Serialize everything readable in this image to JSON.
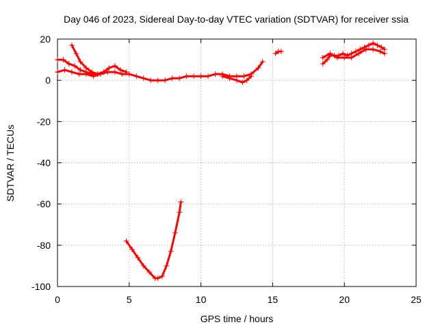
{
  "chart_data": {
    "type": "scatter",
    "title": "Day 046 of 2023, Sidereal Day-to-day VTEC variation (SDTVAR) for receiver ssia",
    "xlabel": "GPS time / hours",
    "ylabel": "SDTVAR / TECUs",
    "xlim": [
      0,
      25
    ],
    "ylim": [
      -100,
      20
    ],
    "xticks": [
      "0",
      "5",
      "10",
      "15",
      "20",
      "25"
    ],
    "yticks": [
      "-100",
      "-80",
      "-60",
      "-40",
      "-20",
      "0",
      "20"
    ],
    "grid": true,
    "color": "#ff0000",
    "series": [
      {
        "points": [
          [
            0.0,
            4
          ],
          [
            0.5,
            5
          ],
          [
            1.0,
            4
          ],
          [
            1.5,
            3
          ],
          [
            2.0,
            3
          ],
          [
            2.5,
            2
          ],
          [
            3.0,
            3
          ],
          [
            3.5,
            4
          ],
          [
            4.0,
            4
          ],
          [
            4.5,
            3
          ],
          [
            5.0,
            3
          ],
          [
            5.5,
            2
          ],
          [
            6.0,
            1
          ],
          [
            6.5,
            0
          ],
          [
            7.0,
            0
          ],
          [
            7.5,
            0
          ],
          [
            8.0,
            1
          ],
          [
            8.5,
            1
          ],
          [
            9.0,
            2
          ],
          [
            9.5,
            2
          ],
          [
            10.0,
            2
          ],
          [
            10.5,
            2
          ],
          [
            11.0,
            3
          ],
          [
            11.5,
            3
          ],
          [
            12.0,
            2
          ],
          [
            12.5,
            2
          ],
          [
            13.0,
            2
          ],
          [
            13.5,
            3
          ],
          [
            14.0,
            6
          ],
          [
            14.3,
            9
          ]
        ]
      },
      {
        "points": [
          [
            0.0,
            10
          ],
          [
            0.4,
            10
          ],
          [
            0.8,
            8
          ],
          [
            1.2,
            7
          ],
          [
            1.6,
            5
          ],
          [
            2.0,
            4
          ],
          [
            2.4,
            3
          ],
          [
            2.8,
            3
          ],
          [
            3.2,
            4
          ],
          [
            3.6,
            6
          ],
          [
            4.0,
            7
          ],
          [
            4.4,
            5
          ],
          [
            4.8,
            4
          ]
        ]
      },
      {
        "points": [
          [
            1.0,
            17
          ],
          [
            1.3,
            13
          ],
          [
            1.6,
            9
          ],
          [
            2.0,
            6
          ],
          [
            2.4,
            4
          ],
          [
            2.8,
            3
          ]
        ]
      },
      {
        "points": [
          [
            11.5,
            2
          ],
          [
            12.0,
            1
          ],
          [
            12.5,
            0
          ],
          [
            12.9,
            -1
          ],
          [
            13.2,
            0
          ],
          [
            13.5,
            2
          ]
        ]
      },
      {
        "points": [
          [
            15.2,
            13
          ],
          [
            15.4,
            14
          ],
          [
            15.6,
            14
          ]
        ]
      },
      {
        "points": [
          [
            18.5,
            8
          ],
          [
            18.8,
            10
          ],
          [
            19.0,
            12
          ],
          [
            19.3,
            12
          ],
          [
            19.6,
            12
          ],
          [
            19.9,
            13
          ],
          [
            20.2,
            12
          ],
          [
            20.5,
            13
          ],
          [
            20.8,
            14
          ],
          [
            21.1,
            15
          ],
          [
            21.4,
            16
          ],
          [
            21.7,
            17
          ],
          [
            22.0,
            18
          ],
          [
            22.3,
            17
          ],
          [
            22.6,
            16
          ],
          [
            22.8,
            15
          ]
        ]
      },
      {
        "points": [
          [
            18.5,
            11
          ],
          [
            19.0,
            13
          ],
          [
            19.5,
            11
          ],
          [
            20.0,
            11
          ],
          [
            20.5,
            11
          ],
          [
            21.0,
            13
          ],
          [
            21.5,
            15
          ],
          [
            22.0,
            15
          ],
          [
            22.5,
            14
          ],
          [
            22.8,
            13
          ]
        ]
      },
      {
        "points": [
          [
            4.8,
            -78
          ],
          [
            5.2,
            -82
          ],
          [
            5.6,
            -86
          ],
          [
            6.0,
            -90
          ],
          [
            6.4,
            -93
          ],
          [
            6.8,
            -96
          ],
          [
            7.0,
            -96
          ],
          [
            7.3,
            -95
          ],
          [
            7.6,
            -90
          ],
          [
            7.9,
            -83
          ],
          [
            8.2,
            -74
          ],
          [
            8.5,
            -64
          ],
          [
            8.6,
            -59
          ]
        ]
      }
    ]
  }
}
